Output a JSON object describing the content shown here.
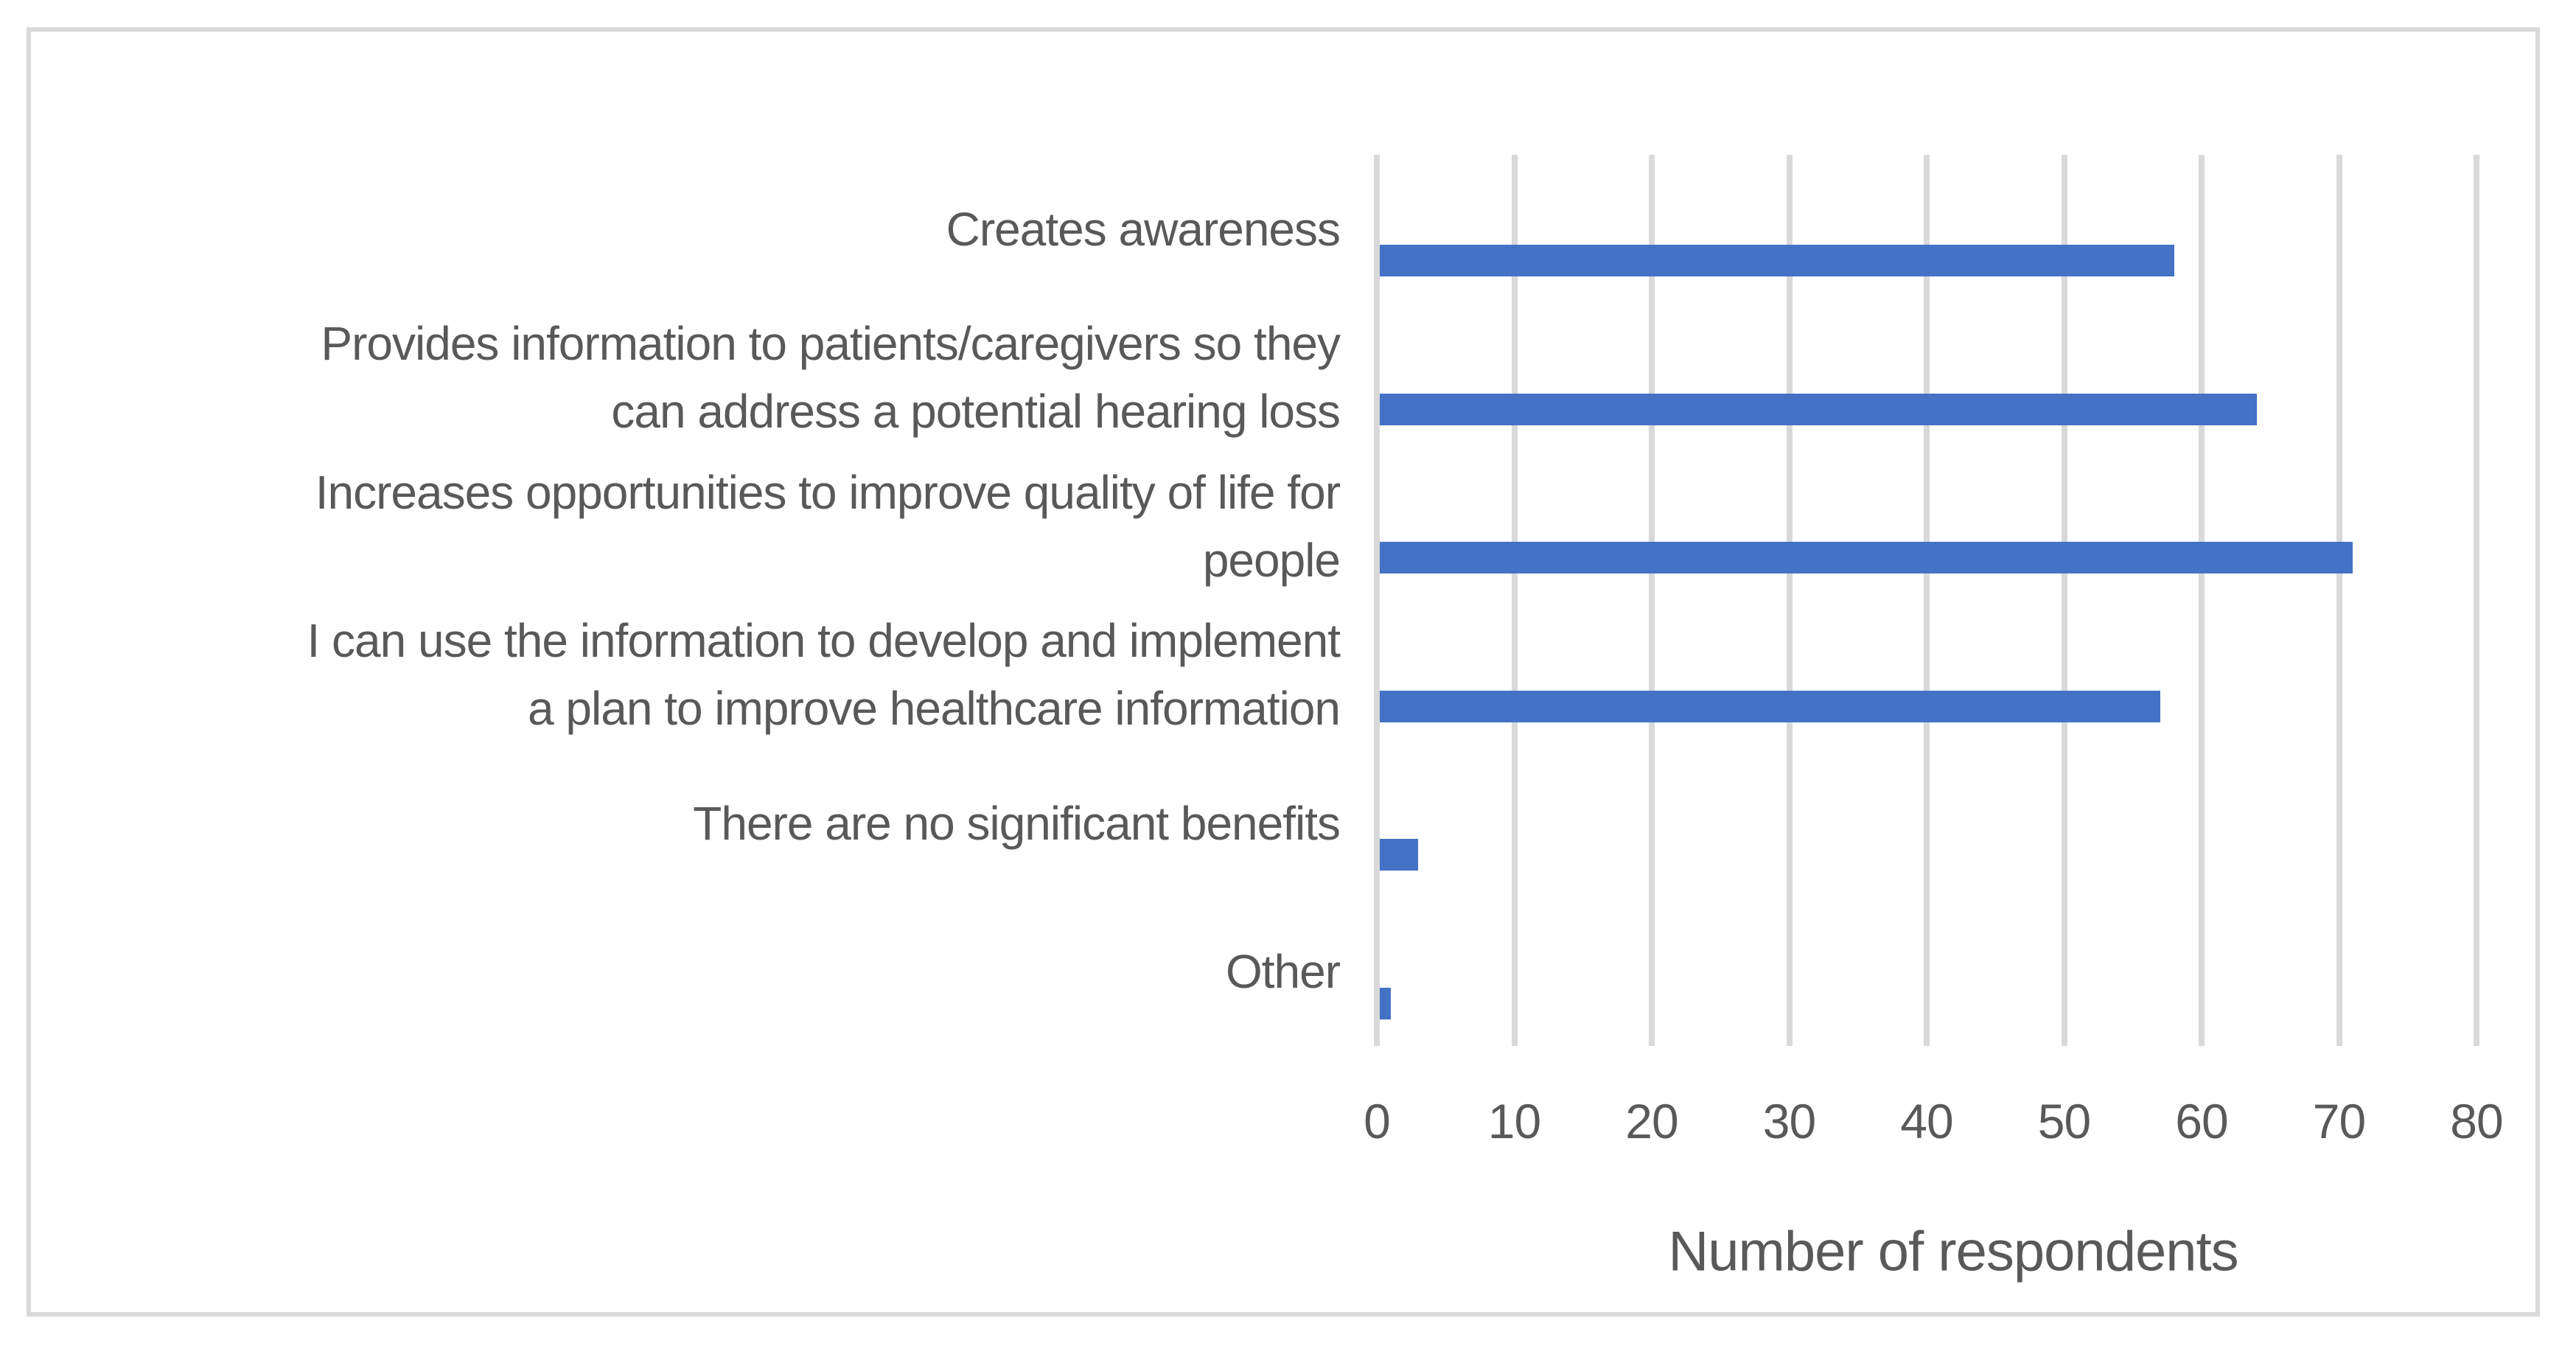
{
  "chart_data": {
    "type": "bar",
    "orientation": "horizontal",
    "title": "",
    "categories": [
      "Creates awareness",
      "Provides information to patients/caregivers so they can address a potential hearing loss",
      "Increases opportunities to improve quality of life for people",
      "I can use the information to develop and implement a plan to improve healthcare information",
      "There are no significant benefits",
      "Other"
    ],
    "category_label_lines": [
      [
        "Creates awareness"
      ],
      [
        "Provides information to patients/caregivers so they",
        "can address a potential hearing loss"
      ],
      [
        "Increases opportunities to improve quality of life for",
        "people"
      ],
      [
        "I can use the information to develop and implement",
        "a plan to improve healthcare information"
      ],
      [
        "There are no significant benefits"
      ],
      [
        "Other"
      ]
    ],
    "values": [
      58,
      64,
      71,
      57,
      3,
      1
    ],
    "xlabel": "Number of respondents",
    "ylabel": "",
    "xlim": [
      0,
      80
    ],
    "xticks": [
      0,
      10,
      20,
      30,
      40,
      50,
      60,
      70,
      80
    ],
    "grid": "vertical-only",
    "legend": "none",
    "colors": {
      "bar": "#4472C4",
      "gridline": "#D9D9D9",
      "frame_border": "#D9D9D9",
      "text": "#595959",
      "background": "#FFFFFF"
    }
  }
}
